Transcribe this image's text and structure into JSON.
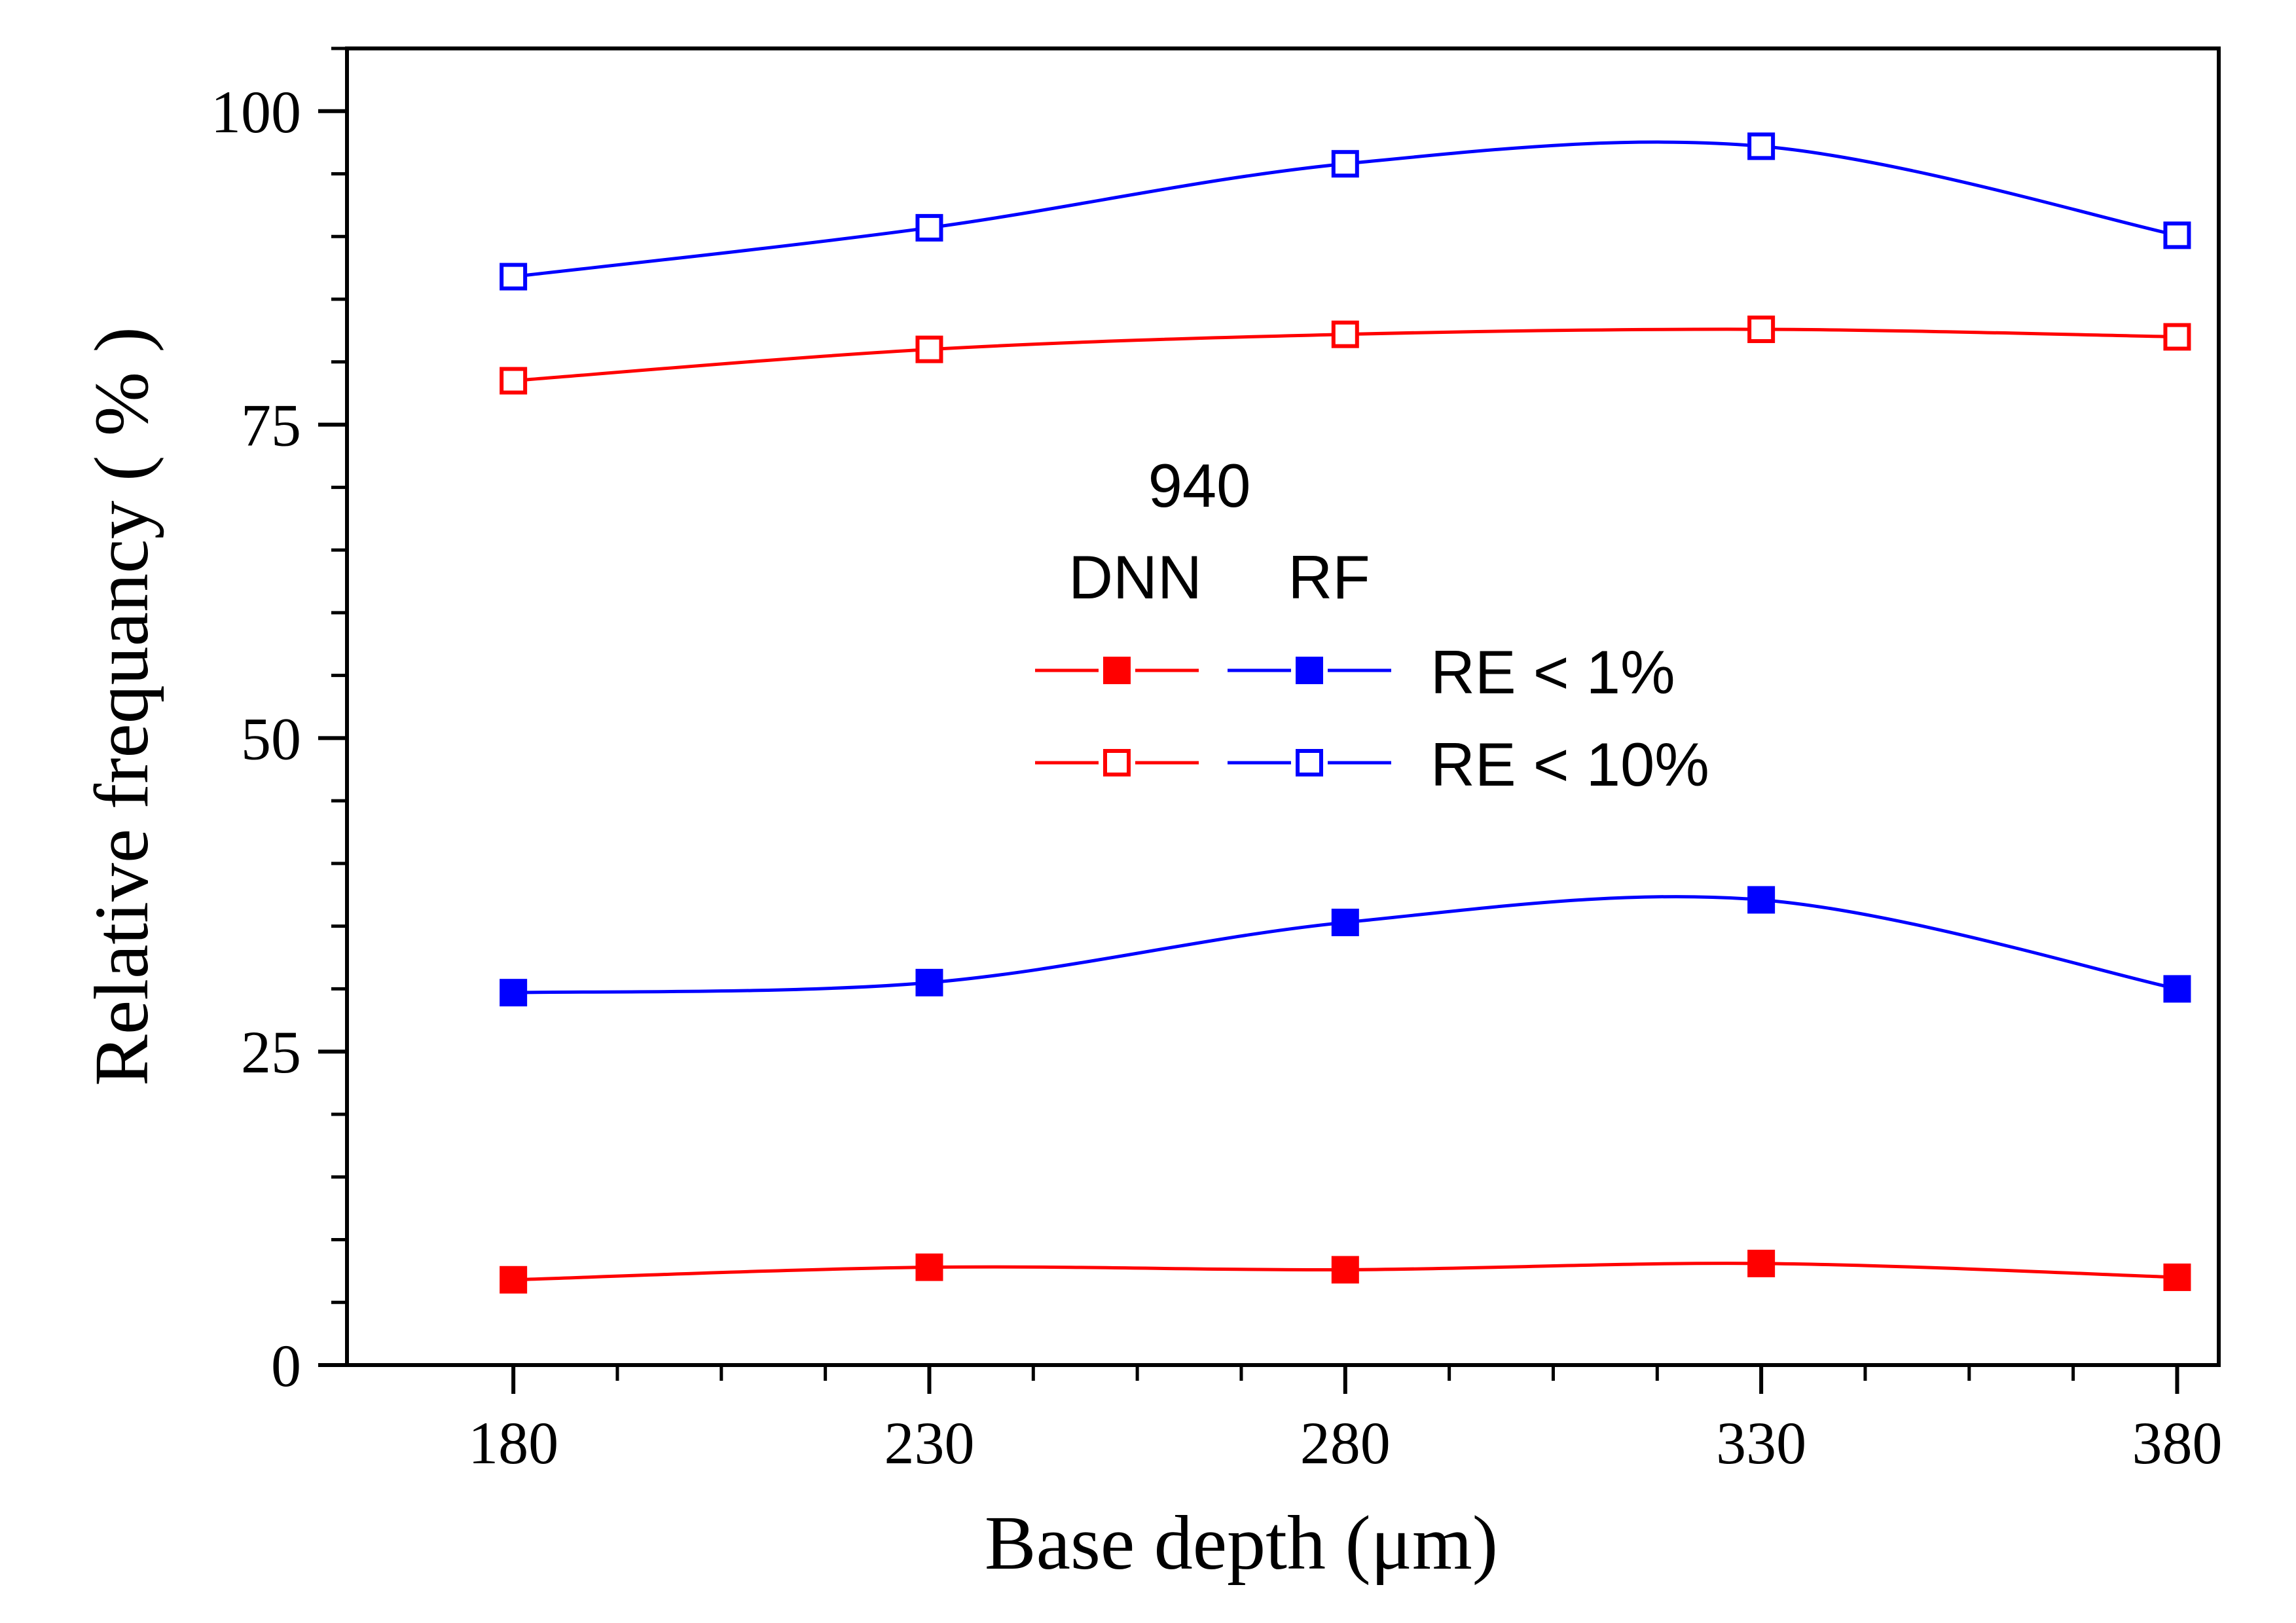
{
  "chart_data": {
    "type": "line",
    "xlabel": "Base depth (μm)",
    "ylabel": "Relative frequancy ( % )",
    "xlim": [
      160,
      385
    ],
    "ylim": [
      0,
      105
    ],
    "x_ticks": [
      180,
      230,
      280,
      330,
      380
    ],
    "y_ticks": [
      0,
      25,
      50,
      75,
      100
    ],
    "x_minor_step": 12.5,
    "y_minor_step": 5,
    "x": [
      180,
      230,
      280,
      330,
      380
    ],
    "series": [
      {
        "model": "DNN",
        "criterion": "RE < 1%",
        "color": "#ff0000",
        "marker": "filled-square",
        "values": [
          6.8,
          7.8,
          7.6,
          8.1,
          7.0
        ]
      },
      {
        "model": "RF",
        "criterion": "RE < 1%",
        "color": "#0000ff",
        "marker": "filled-square",
        "values": [
          29.7,
          30.5,
          35.3,
          37.1,
          30.0
        ]
      },
      {
        "model": "DNN",
        "criterion": "RE < 10%",
        "color": "#ff0000",
        "marker": "open-square",
        "values": [
          78.5,
          81.0,
          82.2,
          82.6,
          82.0
        ]
      },
      {
        "model": "RF",
        "criterion": "RE < 10%",
        "color": "#0000ff",
        "marker": "open-square",
        "values": [
          86.8,
          90.7,
          95.8,
          97.2,
          90.1
        ]
      }
    ],
    "legend": {
      "title": "940",
      "column_headers": [
        "DNN",
        "RF"
      ],
      "rows": [
        {
          "label": "RE < 1%",
          "marker": "filled-square"
        },
        {
          "label": "RE < 10%",
          "marker": "open-square"
        }
      ],
      "placement": "center"
    },
    "grid": false
  }
}
